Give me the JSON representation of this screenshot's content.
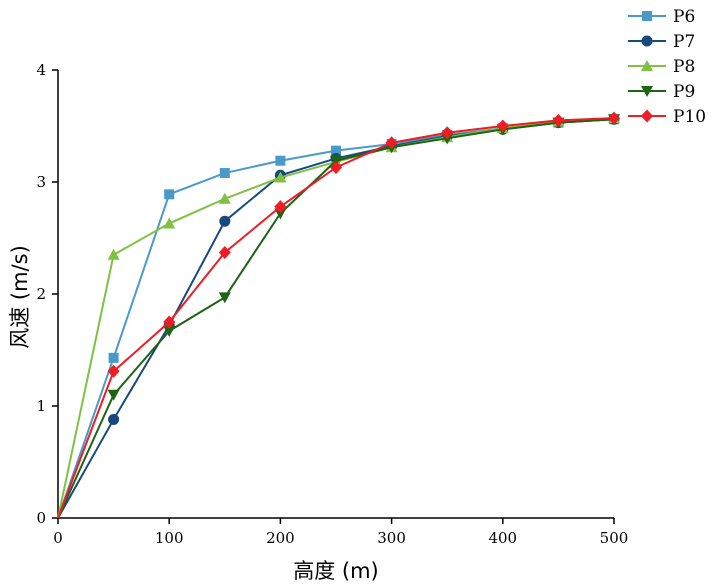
{
  "chart_data": {
    "type": "line",
    "title": "",
    "xlabel": "高度 (m)",
    "ylabel": "风速 (m/s)",
    "xlim": [
      0,
      500
    ],
    "ylim": [
      0,
      4
    ],
    "xticks": [
      0,
      100,
      200,
      300,
      400,
      500
    ],
    "yticks": [
      0,
      1,
      2,
      3,
      4
    ],
    "grid": false,
    "legend_position": "top-right",
    "x": [
      0,
      50,
      100,
      150,
      200,
      250,
      300,
      350,
      400,
      450,
      500
    ],
    "series": [
      {
        "name": "P6",
        "color": "#4a9ac9",
        "marker": "square",
        "values": [
          0,
          1.43,
          2.89,
          3.08,
          3.19,
          3.28,
          3.34,
          3.42,
          3.48,
          3.53,
          3.56
        ]
      },
      {
        "name": "P7",
        "color": "#174a7c",
        "marker": "circle",
        "values": [
          0,
          0.88,
          1.72,
          2.65,
          3.06,
          3.21,
          3.32,
          3.41,
          3.47,
          3.53,
          3.56
        ]
      },
      {
        "name": "P8",
        "color": "#7fc241",
        "marker": "triangle-up",
        "values": [
          0,
          2.35,
          2.63,
          2.85,
          3.04,
          3.18,
          3.31,
          3.4,
          3.48,
          3.54,
          3.57
        ]
      },
      {
        "name": "P9",
        "color": "#1e6414",
        "marker": "triangle-down",
        "values": [
          0,
          1.1,
          1.67,
          1.97,
          2.72,
          3.19,
          3.31,
          3.39,
          3.47,
          3.53,
          3.56
        ]
      },
      {
        "name": "P10",
        "color": "#ee1c24",
        "marker": "diamond",
        "values": [
          0,
          1.31,
          1.75,
          2.37,
          2.78,
          3.13,
          3.35,
          3.44,
          3.5,
          3.55,
          3.57
        ]
      }
    ]
  }
}
